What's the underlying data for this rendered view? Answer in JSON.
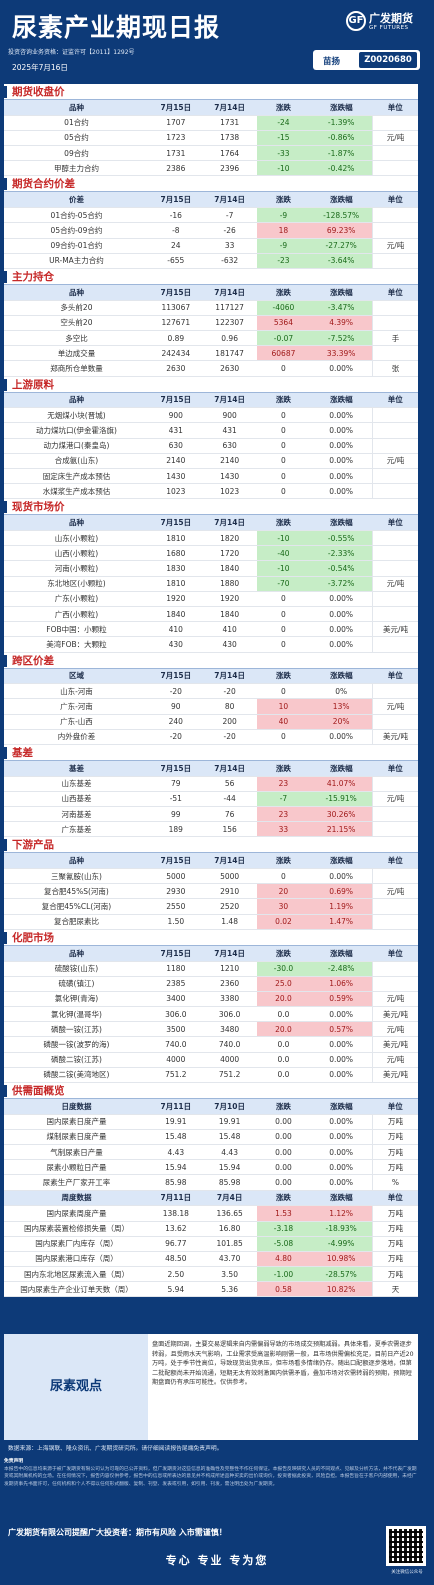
{
  "header": {
    "title": "尿素产业期现日报",
    "qualification": "投资咨询业务资格：证监许可【2011】1292号",
    "date": "2025年7月16日",
    "logo_cn": "广发期货",
    "logo_en": "GF FUTURES",
    "logo_mark": "GF",
    "analyst_name": "苗扬",
    "analyst_license": "Z0020680"
  },
  "sections": [
    {
      "title": "期货收盘价",
      "header": [
        "品种",
        "7月15日",
        "7月14日",
        "涨跌",
        "涨跌幅",
        "单位"
      ],
      "unit_text": "元/吨",
      "unit_row": 1,
      "rows": [
        {
          "cells": [
            "01合约",
            "1707",
            "1731",
            "-24",
            "-1.39%"
          ],
          "dir": "down"
        },
        {
          "cells": [
            "05合约",
            "1723",
            "1738",
            "-15",
            "-0.86%"
          ],
          "dir": "down"
        },
        {
          "cells": [
            "09合约",
            "1731",
            "1764",
            "-33",
            "-1.87%"
          ],
          "dir": "down"
        },
        {
          "cells": [
            "甲醇主力合约",
            "2386",
            "2396",
            "-10",
            "-0.42%"
          ],
          "dir": "down"
        }
      ]
    },
    {
      "title": "期货合约价差",
      "header": [
        "价差",
        "7月15日",
        "7月14日",
        "涨跌",
        "涨跌幅",
        "单位"
      ],
      "unit_text": "元/吨",
      "unit_row": 2,
      "rows": [
        {
          "cells": [
            "01合约-05合约",
            "-16",
            "-7",
            "-9",
            "-128.57%"
          ],
          "dir": "down"
        },
        {
          "cells": [
            "05合约-09合约",
            "-8",
            "-26",
            "18",
            "69.23%"
          ],
          "dir": "up"
        },
        {
          "cells": [
            "09合约-01合约",
            "24",
            "33",
            "-9",
            "-27.27%"
          ],
          "dir": "down"
        },
        {
          "cells": [
            "UR-MA主力合约",
            "-655",
            "-632",
            "-23",
            "-3.64%"
          ],
          "dir": "down"
        }
      ]
    },
    {
      "title": "主力持仓",
      "header": [
        "品种",
        "7月15日",
        "7月14日",
        "涨跌",
        "涨跌幅",
        "单位"
      ],
      "unit_text": "手",
      "unit_row": 2,
      "unit_extra": [
        {
          "row": 4,
          "text": "张"
        }
      ],
      "rows": [
        {
          "cells": [
            "多头前20",
            "113067",
            "117127",
            "-4060",
            "-3.47%"
          ],
          "dir": "down"
        },
        {
          "cells": [
            "空头前20",
            "127671",
            "122307",
            "5364",
            "4.39%"
          ],
          "dir": "up"
        },
        {
          "cells": [
            "多空比",
            "0.89",
            "0.96",
            "-0.07",
            "-7.52%"
          ],
          "dir": "down"
        },
        {
          "cells": [
            "单边成交量",
            "242434",
            "181747",
            "60687",
            "33.39%"
          ],
          "dir": "up"
        },
        {
          "cells": [
            "郑商所仓单数量",
            "2630",
            "2630",
            "0",
            "0.00%"
          ],
          "dir": ""
        }
      ]
    },
    {
      "title": "上游原料",
      "header": [
        "品种",
        "7月15日",
        "7月14日",
        "涨跌",
        "涨跌幅",
        "单位"
      ],
      "unit_text": "元/吨",
      "unit_row": 3,
      "rows": [
        {
          "cells": [
            "无烟煤小块(晋城)",
            "900",
            "900",
            "0",
            "0.00%"
          ],
          "dir": ""
        },
        {
          "cells": [
            "动力煤坑口(伊金霍洛旗)",
            "431",
            "431",
            "0",
            "0.00%"
          ],
          "dir": ""
        },
        {
          "cells": [
            "动力煤港口(秦皇岛)",
            "630",
            "630",
            "0",
            "0.00%"
          ],
          "dir": ""
        },
        {
          "cells": [
            "合成氨(山东)",
            "2140",
            "2140",
            "0",
            "0.00%"
          ],
          "dir": ""
        },
        {
          "cells": [
            "固定床生产成本预估",
            "1430",
            "1430",
            "0",
            "0.00%"
          ],
          "dir": ""
        },
        {
          "cells": [
            "水煤浆生产成本预估",
            "1023",
            "1023",
            "0",
            "0.00%"
          ],
          "dir": ""
        }
      ]
    },
    {
      "title": "现货市场价",
      "header": [
        "品种",
        "7月15日",
        "7月14日",
        "涨跌",
        "涨跌幅",
        "单位"
      ],
      "unit_text": "元/吨",
      "unit_row": 3,
      "unit_extra": [
        {
          "row": 6,
          "text": "美元/吨"
        }
      ],
      "rows": [
        {
          "cells": [
            "山东(小颗粒)",
            "1810",
            "1820",
            "-10",
            "-0.55%"
          ],
          "dir": "down"
        },
        {
          "cells": [
            "山西(小颗粒)",
            "1680",
            "1720",
            "-40",
            "-2.33%"
          ],
          "dir": "down"
        },
        {
          "cells": [
            "河南(小颗粒)",
            "1830",
            "1840",
            "-10",
            "-0.54%"
          ],
          "dir": "down"
        },
        {
          "cells": [
            "东北地区(小颗粒)",
            "1810",
            "1880",
            "-70",
            "-3.72%"
          ],
          "dir": "down"
        },
        {
          "cells": [
            "广东(小颗粒)",
            "1920",
            "1920",
            "0",
            "0.00%"
          ],
          "dir": ""
        },
        {
          "cells": [
            "广西(小颗粒)",
            "1840",
            "1840",
            "0",
            "0.00%"
          ],
          "dir": ""
        },
        {
          "cells": [
            "FOB中国：小颗粒",
            "410",
            "410",
            "0",
            "0.00%"
          ],
          "dir": ""
        },
        {
          "cells": [
            "美湾FOB：大颗粒",
            "430",
            "430",
            "0",
            "0.00%"
          ],
          "dir": ""
        }
      ]
    },
    {
      "title": "跨区价差",
      "header": [
        "区域",
        "7月15日",
        "7月14日",
        "涨跌",
        "涨跌幅",
        "单位"
      ],
      "unit_text": "元/吨",
      "unit_row": 1,
      "unit_extra": [
        {
          "row": 3,
          "text": "美元/吨"
        }
      ],
      "rows": [
        {
          "cells": [
            "山东-河南",
            "-20",
            "-20",
            "0",
            "0%"
          ],
          "dir": ""
        },
        {
          "cells": [
            "广东-河南",
            "90",
            "80",
            "10",
            "13%"
          ],
          "dir": "up"
        },
        {
          "cells": [
            "广东-山西",
            "240",
            "200",
            "40",
            "20%"
          ],
          "dir": "up"
        },
        {
          "cells": [
            "内外盘价差",
            "-20",
            "-20",
            "0",
            "0.00%"
          ],
          "dir": ""
        }
      ]
    },
    {
      "title": "基差",
      "header": [
        "基差",
        "7月15日",
        "7月14日",
        "涨跌",
        "涨跌幅",
        "单位"
      ],
      "unit_text": "元/吨",
      "unit_row": 1,
      "rows": [
        {
          "cells": [
            "山东基差",
            "79",
            "56",
            "23",
            "41.07%"
          ],
          "dir": "up"
        },
        {
          "cells": [
            "山西基差",
            "-51",
            "-44",
            "-7",
            "-15.91%"
          ],
          "dir": "down"
        },
        {
          "cells": [
            "河南基差",
            "99",
            "76",
            "23",
            "30.26%"
          ],
          "dir": "up"
        },
        {
          "cells": [
            "广东基差",
            "189",
            "156",
            "33",
            "21.15%"
          ],
          "dir": "up"
        }
      ]
    },
    {
      "title": "下游产品",
      "header": [
        "品种",
        "7月15日",
        "7月14日",
        "涨跌",
        "涨跌幅",
        "单位"
      ],
      "unit_text": "元/吨",
      "unit_row": 1,
      "rows": [
        {
          "cells": [
            "三聚氰胺(山东)",
            "5000",
            "5000",
            "0",
            "0.00%"
          ],
          "dir": ""
        },
        {
          "cells": [
            "复合肥45%S(河南)",
            "2930",
            "2910",
            "20",
            "0.69%"
          ],
          "dir": "up"
        },
        {
          "cells": [
            "复合肥45%CL(河南)",
            "2550",
            "2520",
            "30",
            "1.19%"
          ],
          "dir": "up"
        },
        {
          "cells": [
            "复合肥尿素比",
            "1.50",
            "1.48",
            "0.02",
            "1.47%"
          ],
          "dir": "up"
        }
      ]
    },
    {
      "title": "化肥市场",
      "header": [
        "品种",
        "7月15日",
        "7月14日",
        "涨跌",
        "涨跌幅",
        "单位"
      ],
      "unit_text": "元/吨",
      "unit_row": 2,
      "unit_extra": [
        {
          "row": 3,
          "text": "美元/吨"
        },
        {
          "row": 4,
          "text": "元/吨"
        },
        {
          "row": 5,
          "text": "美元/吨"
        },
        {
          "row": 6,
          "text": "元/吨"
        },
        {
          "row": 7,
          "text": "美元/吨"
        }
      ],
      "rows": [
        {
          "cells": [
            "硫酸铵(山东)",
            "1180",
            "1210",
            "-30.0",
            "-2.48%"
          ],
          "dir": "down"
        },
        {
          "cells": [
            "硫磺(镇江)",
            "2385",
            "2360",
            "25.0",
            "1.06%"
          ],
          "dir": "up"
        },
        {
          "cells": [
            "氯化钾(青海)",
            "3400",
            "3380",
            "20.0",
            "0.59%"
          ],
          "dir": "up"
        },
        {
          "cells": [
            "氯化钾(温哥华)",
            "306.0",
            "306.0",
            "0.0",
            "0.00%"
          ],
          "dir": ""
        },
        {
          "cells": [
            "磷酸一铵(江苏)",
            "3500",
            "3480",
            "20.0",
            "0.57%"
          ],
          "dir": "up"
        },
        {
          "cells": [
            "磷酸一铵(波罗的海)",
            "740.0",
            "740.0",
            "0.0",
            "0.00%"
          ],
          "dir": ""
        },
        {
          "cells": [
            "磷酸二铵(江苏)",
            "4000",
            "4000",
            "0.0",
            "0.00%"
          ],
          "dir": ""
        },
        {
          "cells": [
            "磷酸二铵(美湾地区)",
            "751.2",
            "751.2",
            "0.0",
            "0.00%"
          ],
          "dir": ""
        }
      ]
    },
    {
      "title": "供需面概览",
      "header": [
        "日度数据",
        "7月11日",
        "7月10日",
        "涨跌",
        "涨跌幅",
        "单位"
      ],
      "unit_text": "",
      "unit_row": -1,
      "unit_list": [
        "万吨",
        "万吨",
        "万吨",
        "万吨",
        "%"
      ],
      "rows": [
        {
          "cells": [
            "国内尿素日度产量",
            "19.91",
            "19.91",
            "0.00",
            "0.00%"
          ],
          "dir": ""
        },
        {
          "cells": [
            "煤制尿素日度产量",
            "15.48",
            "15.48",
            "0.00",
            "0.00%"
          ],
          "dir": ""
        },
        {
          "cells": [
            "气制尿素日产量",
            "4.43",
            "4.43",
            "0.00",
            "0.00%"
          ],
          "dir": ""
        },
        {
          "cells": [
            "尿素小颗粒日产量",
            "15.94",
            "15.94",
            "0.00",
            "0.00%"
          ],
          "dir": ""
        },
        {
          "cells": [
            "尿素生产厂家开工率",
            "85.98",
            "85.98",
            "0.00",
            "0.00%"
          ],
          "dir": ""
        }
      ]
    },
    {
      "title": "",
      "header": [
        "周度数据",
        "7月11日",
        "7月4日",
        "涨跌",
        "涨跌幅",
        "单位"
      ],
      "unit_text": "",
      "unit_row": -1,
      "unit_list": [
        "万吨",
        "万吨",
        "万吨",
        "万吨",
        "万吨",
        "天"
      ],
      "rows": [
        {
          "cells": [
            "国内尿素周度产量",
            "138.18",
            "136.65",
            "1.53",
            "1.12%"
          ],
          "dir": "up"
        },
        {
          "cells": [
            "国内尿素装置检修损失量（周）",
            "13.62",
            "16.80",
            "-3.18",
            "-18.93%"
          ],
          "dir": "down"
        },
        {
          "cells": [
            "国内尿素厂内库存（周）",
            "96.77",
            "101.85",
            "-5.08",
            "-4.99%"
          ],
          "dir": "down"
        },
        {
          "cells": [
            "国内尿素港口库存（周）",
            "48.50",
            "43.70",
            "4.80",
            "10.98%"
          ],
          "dir": "up"
        },
        {
          "cells": [
            "国内东北地区尿素流入量（周）",
            "2.50",
            "3.50",
            "-1.00",
            "-28.57%"
          ],
          "dir": "down"
        },
        {
          "cells": [
            "国内尿素生产企业订单天数（周）",
            "5.94",
            "5.36",
            "0.58",
            "10.82%"
          ],
          "dir": "up"
        }
      ]
    }
  ],
  "views": {
    "label": "尿素观点",
    "text": "盘面近期回调，主要交易逻辑来自内需偏弱导致的市场成交预期减弱。具体来看，夏季农需逐步转弱，且受雨水天气影响，工业需求受高温影响刚需一般，且市场供需偏松充足，目前日产近20万吨，处于季节性高位，导致现货出货承压，但市场看多情绪仍存。随出口配额逐步落地，但第二批配额尚未开始流通，短期无太有效刺激国内供需矛盾，叠加市场对农需转弱的预期，预期短期盘面仍有承压可能性。仅供参考。"
  },
  "source": "数据来源：上海钢联、隆众资讯、广发期货研究所。请仔细阅读报告尾端免责声明。",
  "disclaimer": {
    "title": "免责声明",
    "text": "本报告中的信息均来源于被广发期货有限公司认为可靠的已公开资料，但广发期货对这些信息的准确性及完整性不作任何保证。本报告反映研究人员的不同观点、见解及分析方法，并不代表广发期货或其附属机构的立场。在任何情况下，报告内容仅供参考，报告中的信息或所表达的意见并不构成所述品种买卖的出价或询价，投资者据此投资，风险自担。本报告旨在于客户内部使用，未经广发期货事先书面许可，任何机构和个人不得以任何形式翻版、复制、刊登、发表或引用，如引用、刊发，需注明出处为广发期货。"
  },
  "warning": "广发期货有限公司提醒广大投资者：期市有风险 入市需谨慎！",
  "slogan": "专心 专业 专为您",
  "qr_caption": "关注微信公众号",
  "colors": {
    "brand": "#0d3a78",
    "up": "#f8c7cb",
    "down": "#c6edc6",
    "title": "#c62828"
  }
}
